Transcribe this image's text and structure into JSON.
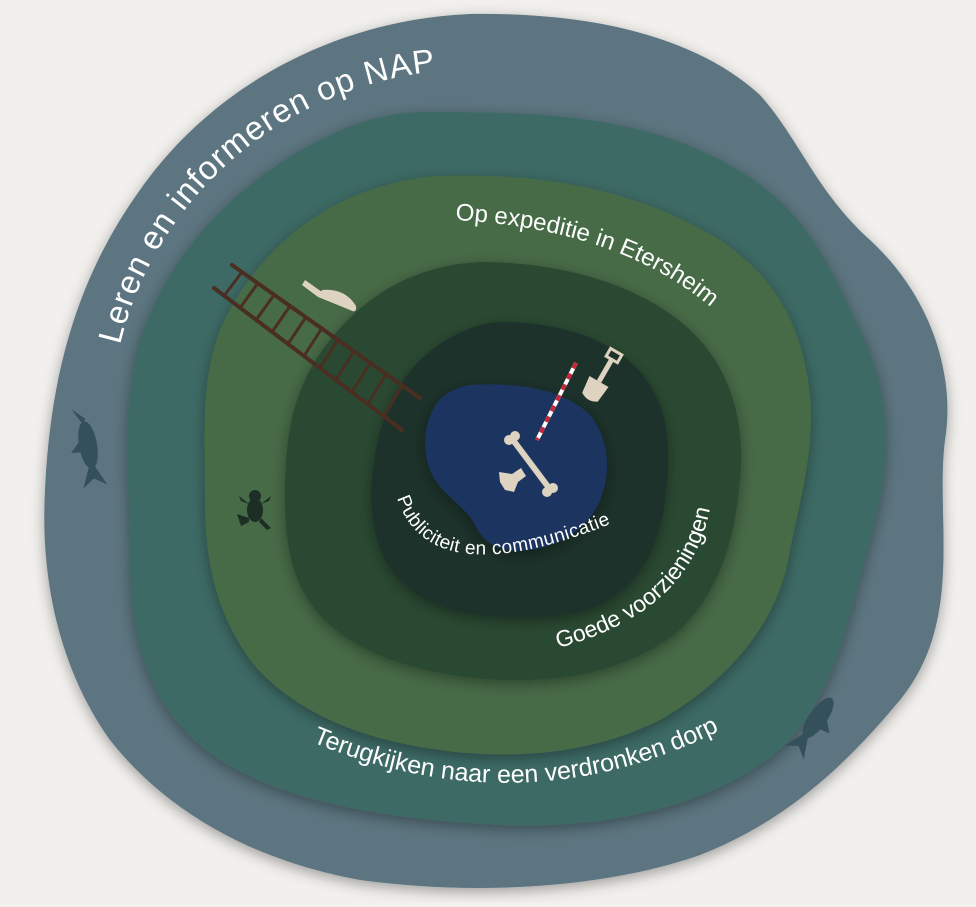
{
  "diagram": {
    "layers": [
      {
        "label": "Leren en informeren op NAP",
        "color": "#5c7480"
      },
      {
        "label": "Terugkijken naar een verdronken dorp",
        "color": "#3e6b65"
      },
      {
        "label": "Op expeditie in Etersheim",
        "color": "#466b46"
      },
      {
        "label": "Goede voorzieningen",
        "color": "#2c4a33"
      },
      {
        "label": "Publiciteit en communicatie",
        "color": "#1d332c"
      },
      {
        "label": "",
        "color": "#1f3461"
      }
    ],
    "icons": [
      "fish-icon",
      "fish-icon",
      "frog-icon",
      "ladder-icon",
      "trowel-icon",
      "measuring-rod-icon",
      "shovel-icon",
      "bone-icon"
    ]
  }
}
